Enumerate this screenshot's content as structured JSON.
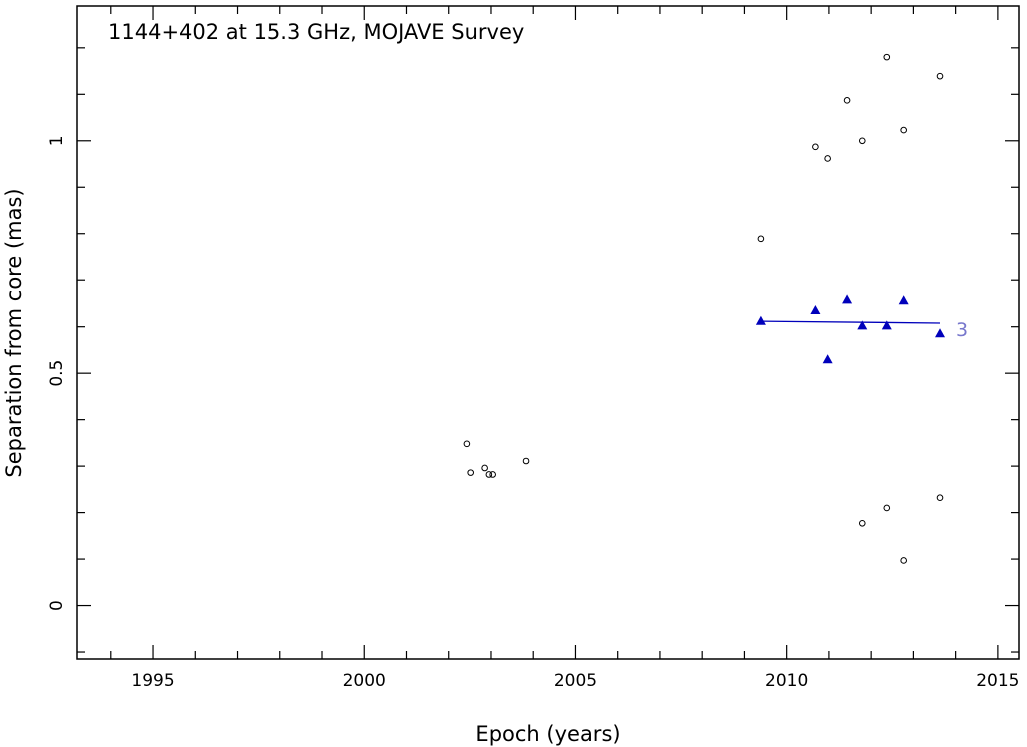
{
  "chart_data": {
    "type": "scatter",
    "title": "1144+402 at 15.3 GHz, MOJAVE Survey",
    "xlabel": "Epoch (years)",
    "ylabel": "Separation from core (mas)",
    "xlim": [
      1993.2,
      2015.5
    ],
    "ylim": [
      -0.115,
      1.29
    ],
    "x_ticks": [
      1995,
      2000,
      2005,
      2010,
      2015
    ],
    "y_ticks": [
      0,
      0.5,
      1
    ],
    "x_tick_labels": [
      "1995",
      "2000",
      "2005",
      "2010",
      "2015"
    ],
    "y_tick_labels": [
      "0",
      "0.5",
      "1"
    ],
    "grid": false,
    "series": [
      {
        "marker": "open-circle",
        "color": "#000000",
        "points": [
          {
            "x": 2002.43,
            "y": 0.348
          },
          {
            "x": 2002.52,
            "y": 0.286
          },
          {
            "x": 2002.85,
            "y": 0.296
          },
          {
            "x": 2002.95,
            "y": 0.282
          },
          {
            "x": 2003.04,
            "y": 0.282
          },
          {
            "x": 2003.83,
            "y": 0.311
          },
          {
            "x": 2009.39,
            "y": 0.789
          },
          {
            "x": 2010.68,
            "y": 0.987
          },
          {
            "x": 2010.97,
            "y": 0.962
          },
          {
            "x": 2011.43,
            "y": 1.087
          },
          {
            "x": 2011.79,
            "y": 1.0
          },
          {
            "x": 2011.79,
            "y": 0.177
          },
          {
            "x": 2012.37,
            "y": 1.18
          },
          {
            "x": 2012.37,
            "y": 0.21
          },
          {
            "x": 2012.77,
            "y": 1.023
          },
          {
            "x": 2012.77,
            "y": 0.097
          },
          {
            "x": 2013.63,
            "y": 1.139
          },
          {
            "x": 2013.63,
            "y": 0.232
          }
        ]
      },
      {
        "marker": "filled-triangle",
        "color": "#0000bb",
        "label": "3",
        "points": [
          {
            "x": 2009.39,
            "y": 0.612
          },
          {
            "x": 2010.68,
            "y": 0.635
          },
          {
            "x": 2010.97,
            "y": 0.529
          },
          {
            "x": 2011.43,
            "y": 0.658
          },
          {
            "x": 2011.79,
            "y": 0.602
          },
          {
            "x": 2012.37,
            "y": 0.602
          },
          {
            "x": 2012.77,
            "y": 0.656
          },
          {
            "x": 2013.63,
            "y": 0.585
          }
        ],
        "fit": {
          "x": [
            2009.39,
            2013.63
          ],
          "y": [
            0.612,
            0.608
          ],
          "color": "#0000bb"
        }
      }
    ]
  }
}
